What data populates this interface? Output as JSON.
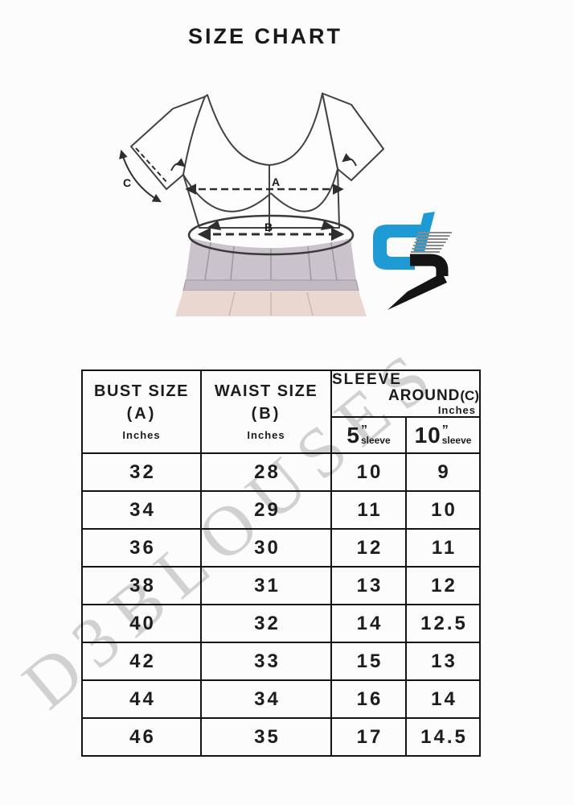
{
  "title": "SIZE CHART",
  "watermark": "D3BLOUSES",
  "brand": {
    "logo_name": "D3 blouses logo",
    "blue": "#1e9ad5",
    "black": "#141414"
  },
  "diagram": {
    "bust_label": "A",
    "waist_label": "B",
    "sleeve_label": "C"
  },
  "table": {
    "headers": {
      "bust": {
        "title": "BUST SIZE",
        "code": "(A)",
        "unit": "Inches"
      },
      "waist": {
        "title": "WAIST SIZE",
        "code": "(B)",
        "unit": "Inches"
      },
      "sleeve": {
        "title": "SLEEVE",
        "title2": "AROUND",
        "code": "(C)",
        "unit": "Inches",
        "sub": [
          {
            "num": "5",
            "quote": "”",
            "label": "sleeve"
          },
          {
            "num": "10",
            "quote": "”",
            "label": "sleeve"
          }
        ]
      }
    },
    "rows": [
      [
        "32",
        "28",
        "10",
        "9"
      ],
      [
        "34",
        "29",
        "11",
        "10"
      ],
      [
        "36",
        "30",
        "12",
        "11"
      ],
      [
        "38",
        "31",
        "13",
        "12"
      ],
      [
        "40",
        "32",
        "14",
        "12.5"
      ],
      [
        "42",
        "33",
        "15",
        "13"
      ],
      [
        "44",
        "34",
        "16",
        "14"
      ],
      [
        "46",
        "35",
        "17",
        "14.5"
      ]
    ]
  }
}
